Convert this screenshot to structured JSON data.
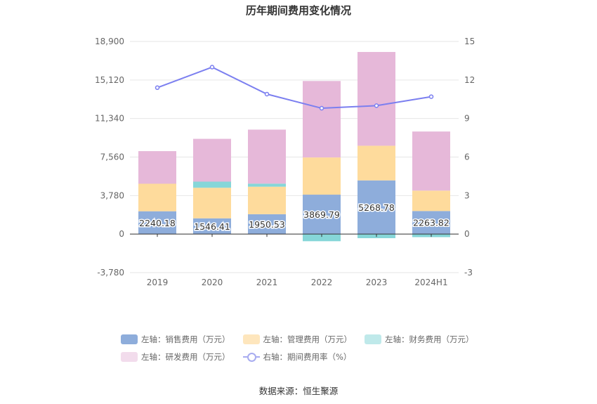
{
  "chart_data": {
    "type": "bar",
    "title": "历年期间费用变化情况",
    "categories": [
      "2019",
      "2020",
      "2021",
      "2022",
      "2023",
      "2024H1"
    ],
    "left_axis": {
      "ticks": [
        "18,900",
        "15,120",
        "11,340",
        "7,560",
        "3,780",
        "0",
        "-3,780"
      ],
      "ylim": [
        -3780,
        18900
      ]
    },
    "right_axis": {
      "ticks": [
        "15",
        "12",
        "9",
        "6",
        "3",
        "0",
        "-3"
      ],
      "ylim": [
        -3,
        15
      ]
    },
    "series": [
      {
        "name": "左轴：销售费用（万元）",
        "color": "#8eaddb",
        "values": [
          2240.18,
          1546.41,
          1950.53,
          3869.79,
          5268.78,
          2263.82
        ]
      },
      {
        "name": "左轴：管理费用（万元）",
        "color": "#fedb9c",
        "values": [
          2700,
          3000,
          2700,
          3650,
          3400,
          2000
        ]
      },
      {
        "name": "左轴：财务费用（万元）",
        "color": "#86d6d8",
        "values": [
          0,
          600,
          300,
          -700,
          -400,
          -300
        ]
      },
      {
        "name": "左轴：研发费用（万元）",
        "color": "#e6b8d9",
        "values": [
          3200,
          4200,
          5300,
          7500,
          9200,
          5800
        ]
      }
    ],
    "data_labels": [
      "2240.18",
      "1546.41",
      "1950.53",
      "3869.79",
      "5268.78",
      "2263.82"
    ],
    "line_series": {
      "name": "右轴：期间费用率（%）",
      "color": "#7b7ff0",
      "values": [
        11.4,
        13.0,
        10.9,
        9.8,
        10.0,
        10.7
      ]
    },
    "legend_position": "bottom",
    "grid": true
  },
  "legend": {
    "sales": "左轴：销售费用（万元）",
    "admin": "左轴：管理费用（万元）",
    "finance": "左轴：财务费用（万元）",
    "rd": "左轴：研发费用（万元）",
    "rate": "右轴：期间费用率（%）"
  },
  "colors": {
    "sales": "#8eaddb",
    "admin": "#fedb9c",
    "finance": "#86d6d8",
    "rd": "#e6b8d9",
    "admin_legend": "#fee6bd",
    "finance_legend": "#bfe9ea",
    "rd_legend": "#f2dcec"
  },
  "source": "数据来源：恒生聚源"
}
